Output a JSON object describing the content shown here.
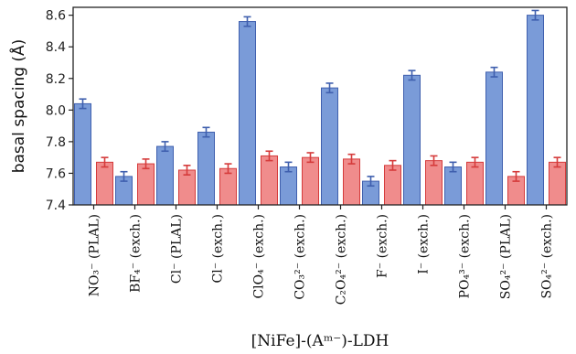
{
  "chart_data": {
    "type": "bar",
    "title": "",
    "ylabel": "basal spacing (Å)",
    "xlabel": "[NiFe]-(Aᵐ⁻)-LDH",
    "ylim": [
      7.4,
      8.65
    ],
    "yticks": [
      "7.4",
      "7.6",
      "7.8",
      "8.0",
      "8.2",
      "8.4",
      "8.6"
    ],
    "grid": false,
    "legend": "none",
    "categories": [
      "NO₃⁻ (PLAL)",
      "BF₄⁻ (exch.)",
      "Cl⁻ (PLAL)",
      "Cl⁻ (exch.)",
      "ClO₄⁻ (exch.)",
      "CO₃²⁻ (exch.)",
      "C₂O₄²⁻ (exch.)",
      "F⁻ (exch.)",
      "I⁻ (exch.)",
      "PO₄³⁻ (exch.)",
      "SO₄²⁻ (PLAL)",
      "SO₄²⁻ (exch.)"
    ],
    "series": [
      {
        "color": "#7a9bd8",
        "edge": "#3f5fae",
        "values": [
          8.04,
          7.58,
          7.77,
          7.86,
          8.56,
          7.64,
          8.14,
          7.55,
          8.22,
          7.64,
          8.24,
          8.6
        ],
        "errors": [
          0.03,
          0.03,
          0.03,
          0.03,
          0.03,
          0.03,
          0.03,
          0.03,
          0.03,
          0.03,
          0.03,
          0.03
        ]
      },
      {
        "color": "#f08c8c",
        "edge": "#d53b3b",
        "values": [
          7.67,
          7.66,
          7.62,
          7.63,
          7.71,
          7.7,
          7.69,
          7.65,
          7.68,
          7.67,
          7.58,
          7.67
        ],
        "errors": [
          0.03,
          0.03,
          0.03,
          0.03,
          0.03,
          0.03,
          0.03,
          0.03,
          0.03,
          0.03,
          0.03,
          0.03
        ]
      }
    ]
  }
}
